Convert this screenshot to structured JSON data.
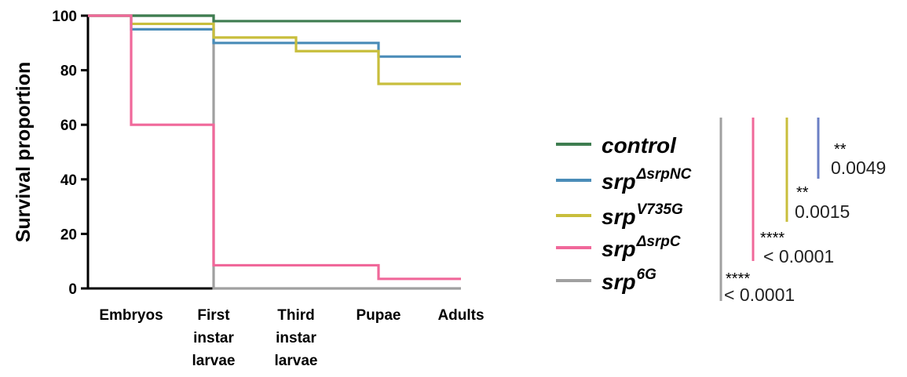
{
  "chart_data": {
    "type": "line",
    "step": true,
    "ylabel": "Survival proportion",
    "categories": [
      "Embryos",
      "First instar larvae",
      "Third instar larvae",
      "Pupae",
      "Adults"
    ],
    "category_lines": [
      [
        "Embryos"
      ],
      [
        "First",
        "instar",
        "larvae"
      ],
      [
        "Third",
        "instar",
        "larvae"
      ],
      [
        "Pupae"
      ],
      [
        "Adults"
      ]
    ],
    "ylim": [
      0,
      100
    ],
    "yticks": [
      "0",
      "20",
      "40",
      "60",
      "80",
      "100"
    ],
    "series": [
      {
        "name": "control",
        "base": "control",
        "sup": "",
        "color": "#3e7d50",
        "values": [
          100,
          98,
          98,
          98,
          98
        ]
      },
      {
        "name": "srp ΔsrpNC",
        "base": "srp",
        "sup": "ΔsrpNC",
        "color": "#4a8cb8",
        "values": [
          95,
          90,
          90,
          85,
          85
        ]
      },
      {
        "name": "srp V735G",
        "base": "srp",
        "sup": "V735G",
        "color": "#c8be3c",
        "values": [
          97,
          92,
          87,
          75,
          75
        ]
      },
      {
        "name": "srp ΔsrpC",
        "base": "srp",
        "sup": "ΔsrpC",
        "color": "#f0689a",
        "values": [
          60,
          8.5,
          8.5,
          3.5,
          3.5
        ]
      },
      {
        "name": "srp 6G",
        "base": "srp",
        "sup": "6G",
        "color": "#a0a0a0",
        "values": [
          100,
          0,
          0,
          0,
          0
        ]
      }
    ],
    "comparisons": [
      {
        "color": "#6b7fc4",
        "stars": "**",
        "p": "0.0049"
      },
      {
        "color": "#c8be3c",
        "stars": "**",
        "p": "0.0015"
      },
      {
        "color": "#f0689a",
        "stars": "****",
        "p": "< 0.0001"
      },
      {
        "color": "#a0a0a0",
        "stars": "****",
        "p": "< 0.0001"
      }
    ],
    "grid": false,
    "legend_position": "right"
  }
}
